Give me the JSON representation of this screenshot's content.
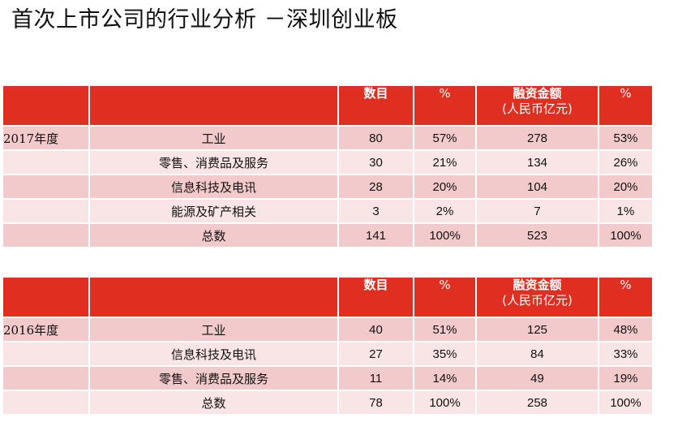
{
  "title": "首次上市公司的行业分析 －深圳创业板",
  "colors": {
    "header": "#e02e20",
    "row_dark": "#f2cacb",
    "row_light": "#f9e5e6"
  },
  "headers": {
    "count": "数目",
    "pct": "%",
    "amount_line1": "融资金额",
    "amount_line2": "(人民币亿元)",
    "pct2": "%"
  },
  "tables": [
    {
      "year": "2017年度",
      "rows": [
        {
          "industry": "工业",
          "count": "80",
          "count_pct": "57%",
          "amount": "278",
          "amount_pct": "53%"
        },
        {
          "industry": "零售、消费品及服务",
          "count": "30",
          "count_pct": "21%",
          "amount": "134",
          "amount_pct": "26%"
        },
        {
          "industry": "信息科技及电讯",
          "count": "28",
          "count_pct": "20%",
          "amount": "104",
          "amount_pct": "20%"
        },
        {
          "industry": "能源及矿产相关",
          "count": "3",
          "count_pct": "2%",
          "amount": "7",
          "amount_pct": "1%"
        },
        {
          "industry": "总数",
          "count": "141",
          "count_pct": "100%",
          "amount": "523",
          "amount_pct": "100%"
        }
      ]
    },
    {
      "year": "2016年度",
      "rows": [
        {
          "industry": "工业",
          "count": "40",
          "count_pct": "51%",
          "amount": "125",
          "amount_pct": "48%"
        },
        {
          "industry": "信息科技及电讯",
          "count": "27",
          "count_pct": "35%",
          "amount": "84",
          "amount_pct": "33%"
        },
        {
          "industry": "零售、消费品及服务",
          "count": "11",
          "count_pct": "14%",
          "amount": "49",
          "amount_pct": "19%"
        },
        {
          "industry": "总数",
          "count": "78",
          "count_pct": "100%",
          "amount": "258",
          "amount_pct": "100%"
        }
      ]
    }
  ]
}
